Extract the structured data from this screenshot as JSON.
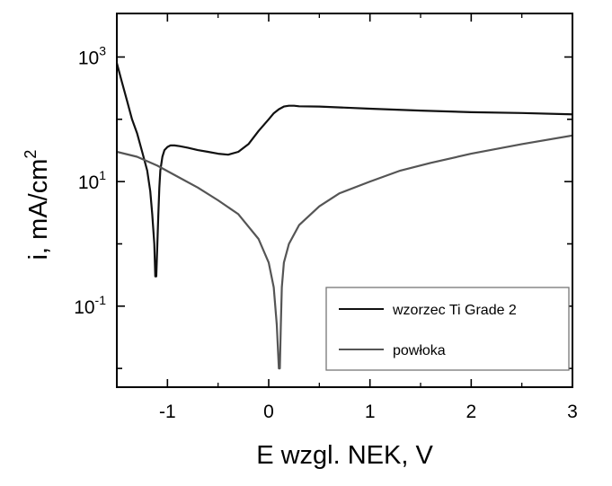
{
  "chart_data": {
    "type": "line",
    "xlabel": "E wzgl. NEK, V",
    "ylabel": "i, mA/cm",
    "ylabel_superscript": "2",
    "x_scale": "linear",
    "y_scale": "log",
    "xlim": [
      -1.5,
      3
    ],
    "ylim": [
      0.005,
      5000
    ],
    "x_ticks": [
      -1,
      0,
      1,
      2,
      3
    ],
    "x_tick_labels": [
      "-1",
      "0",
      "1",
      "2",
      "3"
    ],
    "y_ticks": [
      0.1,
      10,
      1000
    ],
    "y_tick_labels": [
      {
        "base": "10",
        "exp": "-1"
      },
      {
        "base": "10",
        "exp": "1"
      },
      {
        "base": "10",
        "exp": "3"
      }
    ],
    "grid": false,
    "legend_position": "bottom-right",
    "series": [
      {
        "name": "wzorzec Ti Grade 2",
        "color": "#111111",
        "x": [
          -1.5,
          -1.45,
          -1.4,
          -1.35,
          -1.3,
          -1.25,
          -1.2,
          -1.17,
          -1.15,
          -1.13,
          -1.12,
          -1.11,
          -1.1,
          -1.09,
          -1.08,
          -1.07,
          -1.05,
          -1.03,
          -1.0,
          -0.97,
          -0.93,
          -0.88,
          -0.8,
          -0.7,
          -0.6,
          -0.5,
          -0.4,
          -0.3,
          -0.2,
          -0.1,
          0.0,
          0.05,
          0.1,
          0.15,
          0.2,
          0.25,
          0.3,
          0.5,
          1.0,
          1.5,
          2.0,
          2.5,
          3.0
        ],
        "y": [
          800,
          400,
          200,
          100,
          60,
          30,
          15,
          7,
          3,
          1,
          0.3,
          0.3,
          1,
          3,
          8,
          15,
          25,
          32,
          36,
          38,
          38,
          37,
          35,
          32,
          30,
          28,
          27,
          30,
          40,
          65,
          100,
          125,
          145,
          160,
          165,
          165,
          162,
          160,
          148,
          138,
          130,
          126,
          120
        ]
      },
      {
        "name": "powłoka",
        "color": "#555555",
        "x": [
          -1.5,
          -1.3,
          -1.1,
          -0.9,
          -0.7,
          -0.5,
          -0.3,
          -0.1,
          0.0,
          0.05,
          0.08,
          0.1,
          0.11,
          0.12,
          0.13,
          0.15,
          0.2,
          0.3,
          0.5,
          0.7,
          1.0,
          1.3,
          1.6,
          2.0,
          2.5,
          3.0
        ],
        "y": [
          30,
          25,
          18,
          12,
          8,
          5,
          3,
          1.2,
          0.5,
          0.2,
          0.05,
          0.01,
          0.01,
          0.05,
          0.2,
          0.5,
          1,
          2,
          4,
          6.5,
          10,
          15,
          20,
          28,
          40,
          55
        ]
      }
    ]
  }
}
